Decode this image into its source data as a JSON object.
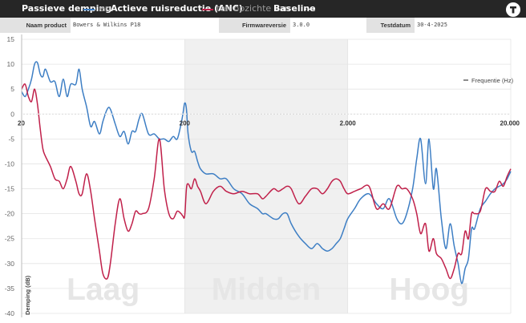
{
  "title_bar": {
    "part1": "Passieve demping",
    "part2": "en",
    "part3": "Actieve ruisreductie (ANC)",
    "part4": "ten opzichte van",
    "part5": "Baseline",
    "logo_icon": "tweakers-logo-icon"
  },
  "info": {
    "product_label": "Naam product",
    "product_value": "Bowers & Wilkins P18",
    "firmware_label": "Firmwareversie",
    "firmware_value": "3.0.0",
    "date_label": "Testdatum",
    "date_value": "30-4-2025"
  },
  "colors": {
    "passive": "#3d7ec4",
    "anc": "#c0204a",
    "baseline": "#ffffff",
    "grid": "#e4e4e4",
    "mid_band": "#f0f0f0",
    "title_bg": "#262626"
  },
  "chart_data": {
    "type": "line",
    "x_scale": "log",
    "xlim": [
      20,
      20000
    ],
    "ylim": [
      -40,
      15
    ],
    "y_ticks": [
      "15",
      "10",
      "5",
      "0",
      "-5",
      "-10",
      "-15",
      "-20",
      "-25",
      "-30",
      "-35",
      "-40"
    ],
    "x_ticks": [
      "20",
      "200",
      "2.000",
      "20.000"
    ],
    "ylabel": "Demping (dB)",
    "legend_label": "Frequentie (Hz)",
    "bands": [
      "Laag",
      "Midden",
      "Hoog"
    ],
    "series": [
      {
        "id": "passive",
        "x": [
          20,
          21,
          22,
          23,
          24,
          25,
          26,
          27,
          28,
          30,
          32,
          34,
          36,
          38,
          40,
          43,
          45,
          47,
          50,
          53,
          56,
          60,
          63,
          67,
          70,
          75,
          80,
          85,
          90,
          95,
          100,
          105,
          110,
          120,
          130,
          140,
          150,
          160,
          170,
          180,
          190,
          195,
          200,
          205,
          210,
          220,
          230,
          240,
          250,
          270,
          300,
          330,
          360,
          400,
          450,
          500,
          560,
          600,
          630,
          700,
          750,
          800,
          850,
          900,
          1000,
          1100,
          1200,
          1300,
          1400,
          1500,
          1600,
          1700,
          1800,
          1900,
          2000,
          2200,
          2400,
          2700,
          3000,
          3300,
          3600,
          4000,
          4300,
          4600,
          5000,
          5300,
          5600,
          6000,
          6300,
          6700,
          7000,
          7500,
          8000,
          8500,
          9000,
          9500,
          10000,
          10500,
          11000,
          11500,
          12000,
          13000,
          14000,
          15000,
          16000,
          17000,
          18000,
          19000,
          20000
        ],
        "y": [
          4.5,
          3.5,
          5,
          7,
          10,
          10.3,
          8,
          7.5,
          9,
          6.5,
          6.5,
          3.5,
          7,
          3.5,
          6,
          6,
          9,
          5,
          1.5,
          -2.5,
          -1.5,
          -4,
          -1.5,
          1,
          1,
          -2,
          -4.5,
          -3.5,
          -6,
          -3.5,
          -3.5,
          -1,
          0,
          -4,
          -4,
          -5,
          -5,
          -5.5,
          -4.5,
          -5,
          -2,
          0,
          2.2,
          1,
          -4,
          -7.5,
          -7.5,
          -9.5,
          -11,
          -12,
          -12,
          -13,
          -13,
          -15,
          -16,
          -18,
          -19,
          -20,
          -20,
          -21,
          -21,
          -20,
          -20,
          -22,
          -24.5,
          -26,
          -27,
          -26,
          -27,
          -27.5,
          -27,
          -26,
          -25,
          -23,
          -21,
          -19,
          -17,
          -16,
          -18,
          -19,
          -17,
          -21,
          -22,
          -20,
          -15,
          -9,
          -5,
          -14,
          -5,
          -15,
          -11,
          -21,
          -27,
          -22,
          -26.5,
          -30,
          -34,
          -31,
          -29,
          -23,
          -23,
          -19,
          -17.5,
          -16,
          -15,
          -14.5,
          -14,
          -13,
          -11.5
        ]
      },
      {
        "id": "anc",
        "x": [
          20,
          21,
          22,
          23,
          24,
          25,
          26,
          27,
          28,
          30,
          32,
          34,
          36,
          38,
          40,
          43,
          45,
          47,
          50,
          53,
          56,
          60,
          63,
          67,
          70,
          75,
          80,
          85,
          90,
          95,
          100,
          105,
          110,
          120,
          130,
          140,
          150,
          160,
          170,
          180,
          190,
          195,
          200,
          205,
          210,
          220,
          230,
          240,
          250,
          270,
          300,
          330,
          360,
          400,
          450,
          500,
          560,
          600,
          630,
          700,
          750,
          800,
          850,
          900,
          1000,
          1100,
          1200,
          1300,
          1400,
          1500,
          1600,
          1700,
          1800,
          1900,
          2000,
          2200,
          2400,
          2700,
          3000,
          3300,
          3600,
          4000,
          4300,
          4600,
          5000,
          5300,
          5600,
          6000,
          6300,
          6700,
          7000,
          7500,
          8000,
          8500,
          9000,
          9500,
          10000,
          10500,
          11000,
          11500,
          12000,
          13000,
          14000,
          15000,
          16000,
          17000,
          18000,
          19000,
          20000
        ],
        "y": [
          5,
          6,
          3.5,
          2.5,
          5,
          2,
          -3,
          -7,
          -8.5,
          -10.5,
          -13,
          -13.5,
          -15,
          -13,
          -10.5,
          -13.5,
          -16,
          -16,
          -12,
          -15.5,
          -21,
          -27.5,
          -32,
          -33,
          -30,
          -22,
          -17,
          -21,
          -23.5,
          -22,
          -19.5,
          -20,
          -20,
          -19,
          -13,
          -5,
          -15,
          -20,
          -21,
          -19.5,
          -20,
          -20.5,
          -20.5,
          -15,
          -14,
          -15,
          -13,
          -14.5,
          -15.5,
          -18,
          -15.5,
          -14.5,
          -15.5,
          -16,
          -15.5,
          -16,
          -16,
          -17,
          -16.5,
          -15,
          -15.5,
          -15,
          -14.5,
          -15,
          -18,
          -16.5,
          -15,
          -15,
          -16,
          -15,
          -13.5,
          -13,
          -13.5,
          -15,
          -16,
          -15.5,
          -15,
          -14.5,
          -19,
          -18,
          -19,
          -14.5,
          -15,
          -15,
          -17,
          -20,
          -24,
          -22,
          -27.5,
          -25,
          -28,
          -29,
          -31,
          -33,
          -31,
          -28,
          -28,
          -23.5,
          -25,
          -20,
          -20,
          -19.5,
          -15,
          -15.5,
          -15.5,
          -13.5,
          -14.5,
          -12.5,
          -11
        ]
      },
      {
        "id": "baseline",
        "x": [
          20,
          20000
        ],
        "y": [
          0,
          0
        ]
      }
    ]
  }
}
